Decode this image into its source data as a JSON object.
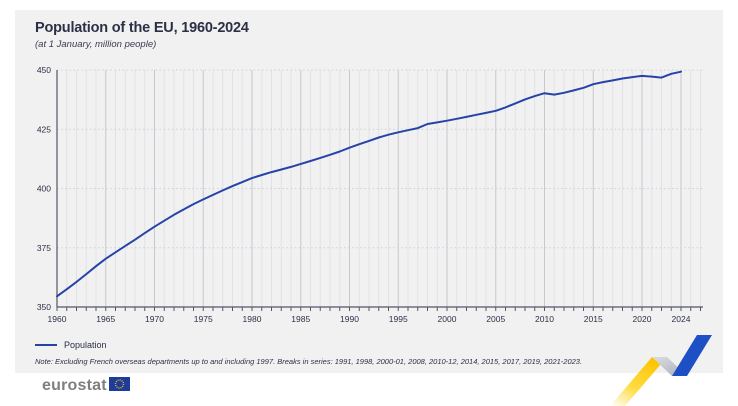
{
  "header": {
    "title": "Population of the EU, 1960-2024",
    "subtitle": "(at 1 January, million people)"
  },
  "legend": {
    "label": "Population"
  },
  "note": {
    "text": "Note: Excluding French overseas departments up to and including 1997. Breaks in series: 1991, 1998, 2000-01, 2008, 2010-12, 2014, 2015, 2017, 2019, 2021-2023."
  },
  "footer": {
    "brand": "eurostat"
  },
  "colors": {
    "line": "#2644a7",
    "panel_bg": "#f1f1f2",
    "title_text": "#2c3045",
    "axis": "#55556a",
    "grid_minor": "#e2e2e6",
    "grid_major": "#c8c8ce",
    "grid_dotted": "#cfcfd6",
    "brand_gray": "#7f7f82",
    "eu_flag_blue": "#1e3c9b",
    "eu_star_yellow": "#ffcc00",
    "deco_yellow": "#ffd520",
    "deco_gray": "#b9bdc6",
    "deco_blue": "#1d50c4"
  },
  "chart_data": {
    "type": "line",
    "title": "Population of the EU, 1960-2024",
    "subtitle": "(at 1 January, million people)",
    "xlabel": "",
    "ylabel": "million people",
    "ylim": [
      350,
      450
    ],
    "y_ticks": [
      350,
      375,
      400,
      425,
      450
    ],
    "x_ticks": [
      1960,
      1965,
      1970,
      1975,
      1980,
      1985,
      1990,
      1995,
      2000,
      2005,
      2010,
      2015,
      2020,
      2024
    ],
    "grid": "vertical line per year (darker every 5 years), dotted horizontal lines at y ticks",
    "legend_position": "bottom-left",
    "x": [
      1960,
      1961,
      1962,
      1963,
      1964,
      1965,
      1966,
      1967,
      1968,
      1969,
      1970,
      1971,
      1972,
      1973,
      1974,
      1975,
      1976,
      1977,
      1978,
      1979,
      1980,
      1981,
      1982,
      1983,
      1984,
      1985,
      1986,
      1987,
      1988,
      1989,
      1990,
      1991,
      1992,
      1993,
      1994,
      1995,
      1996,
      1997,
      1998,
      1999,
      2000,
      2001,
      2002,
      2003,
      2004,
      2005,
      2006,
      2007,
      2008,
      2009,
      2010,
      2011,
      2012,
      2013,
      2014,
      2015,
      2016,
      2017,
      2018,
      2019,
      2020,
      2021,
      2022,
      2023,
      2024
    ],
    "series": [
      {
        "name": "Population",
        "values": [
          354.5,
          357.5,
          360.6,
          363.9,
          367.2,
          370.4,
          373.1,
          375.8,
          378.4,
          381.2,
          383.9,
          386.4,
          388.9,
          391.2,
          393.4,
          395.4,
          397.3,
          399.2,
          401.0,
          402.7,
          404.4,
          405.7,
          406.9,
          408.0,
          409.1,
          410.4,
          411.6,
          412.9,
          414.2,
          415.6,
          417.2,
          418.7,
          420.1,
          421.5,
          422.7,
          423.7,
          424.6,
          425.5,
          427.2,
          427.9,
          428.6,
          429.4,
          430.2,
          431.1,
          431.9,
          432.8,
          434.2,
          435.9,
          437.6,
          439.0,
          440.2,
          439.6,
          440.4,
          441.4,
          442.5,
          444.0,
          444.9,
          445.6,
          446.4,
          447.0,
          447.5,
          447.2,
          446.8,
          448.4,
          449.3
        ]
      }
    ]
  }
}
